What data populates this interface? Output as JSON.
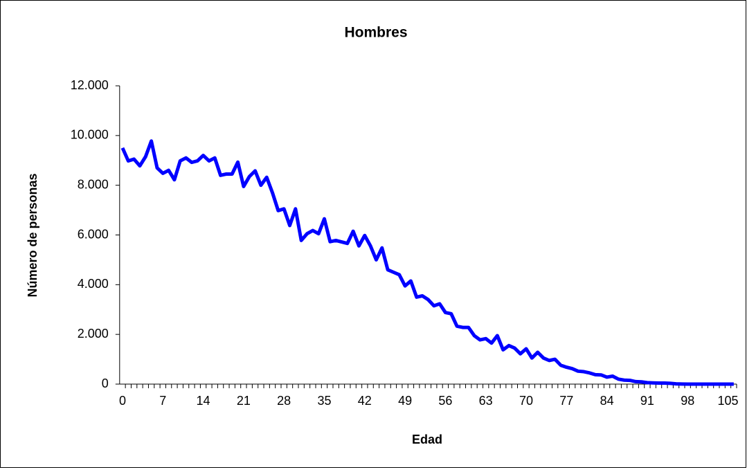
{
  "chart_data": {
    "type": "line",
    "title": "Hombres",
    "x_label": "Edad",
    "y_label": "Número de personas",
    "x": [
      0,
      1,
      2,
      3,
      4,
      5,
      6,
      7,
      8,
      9,
      10,
      11,
      12,
      13,
      14,
      15,
      16,
      17,
      18,
      19,
      20,
      21,
      22,
      23,
      24,
      25,
      26,
      27,
      28,
      29,
      30,
      31,
      32,
      33,
      34,
      35,
      36,
      37,
      38,
      39,
      40,
      41,
      42,
      43,
      44,
      45,
      46,
      47,
      48,
      49,
      50,
      51,
      52,
      53,
      54,
      55,
      56,
      57,
      58,
      59,
      60,
      61,
      62,
      63,
      64,
      65,
      66,
      67,
      68,
      69,
      70,
      71,
      72,
      73,
      74,
      75,
      76,
      77,
      78,
      79,
      80,
      81,
      82,
      83,
      84,
      85,
      86,
      87,
      88,
      89,
      90,
      91,
      92,
      93,
      94,
      95,
      96,
      97,
      98,
      99,
      100,
      101,
      102,
      103,
      104,
      105,
      106
    ],
    "values": [
      9500,
      8980,
      9050,
      8780,
      9150,
      9780,
      8700,
      8480,
      8600,
      8220,
      8980,
      9100,
      8920,
      8980,
      9200,
      8980,
      9100,
      8400,
      8450,
      8450,
      8930,
      7950,
      8350,
      8580,
      8000,
      8320,
      7700,
      6980,
      7050,
      6380,
      7050,
      5780,
      6050,
      6180,
      6050,
      6650,
      5730,
      5780,
      5720,
      5660,
      6150,
      5560,
      5980,
      5560,
      5000,
      5480,
      4600,
      4500,
      4400,
      3950,
      4150,
      3500,
      3550,
      3400,
      3150,
      3230,
      2880,
      2830,
      2330,
      2280,
      2280,
      1950,
      1780,
      1830,
      1650,
      1950,
      1380,
      1550,
      1450,
      1220,
      1420,
      1050,
      1280,
      1050,
      950,
      1000,
      760,
      680,
      620,
      520,
      500,
      450,
      380,
      370,
      280,
      320,
      200,
      160,
      150,
      100,
      90,
      60,
      50,
      40,
      40,
      30,
      10,
      5,
      0,
      0,
      0,
      0,
      0,
      0,
      0,
      0,
      0
    ],
    "color": "#0000ff",
    "xlim": [
      -0.5,
      106.5
    ],
    "xticks": [
      0,
      7,
      14,
      21,
      28,
      35,
      42,
      49,
      56,
      63,
      70,
      77,
      84,
      91,
      98,
      105
    ],
    "ylim": [
      0,
      12000
    ],
    "yticks": [
      0,
      {
        "value": 2000,
        "label": "2.000"
      },
      {
        "value": 4000,
        "label": "4.000"
      },
      {
        "value": 6000,
        "label": "6.000"
      },
      {
        "value": 8000,
        "label": "8.000"
      },
      {
        "value": 10000,
        "label": "10.000"
      },
      {
        "value": 12000,
        "label": "12.000"
      }
    ]
  }
}
